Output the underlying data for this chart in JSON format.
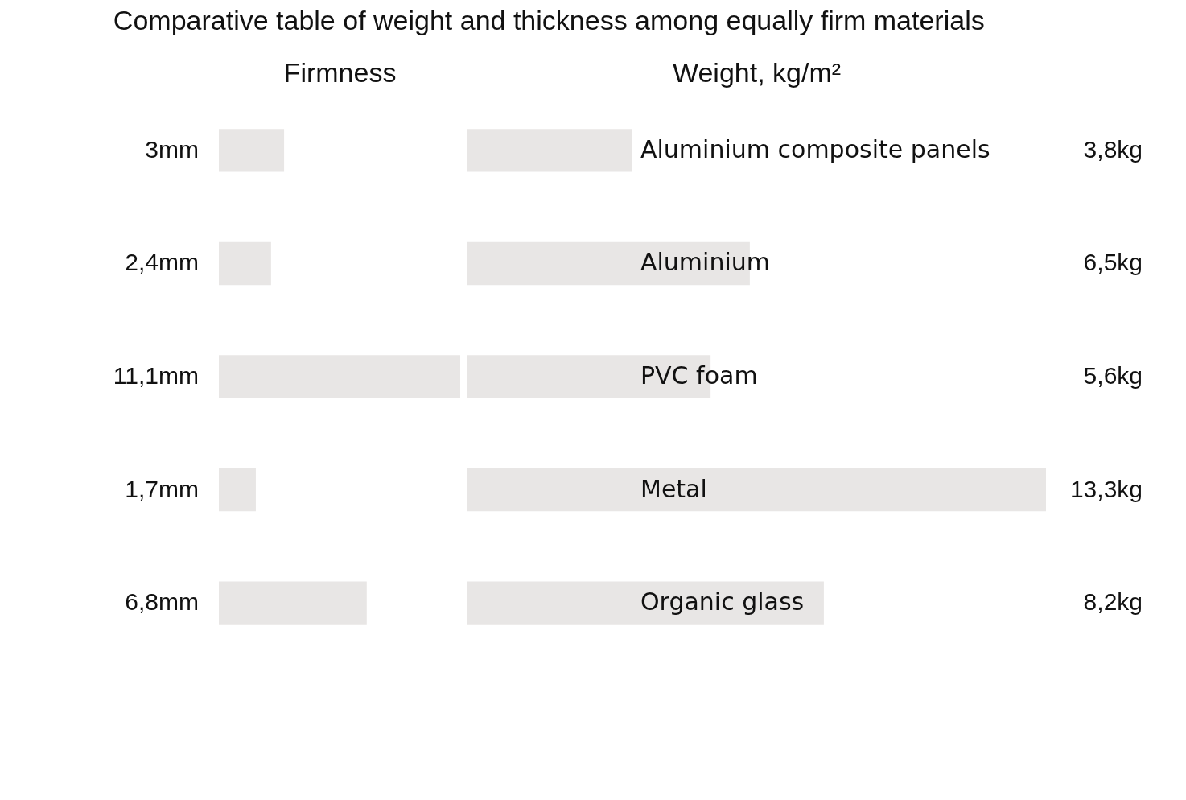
{
  "chart_data": [
    {
      "type": "bar",
      "orientation": "horizontal",
      "title": "Comparative table of weight and thickness among equally firm materials",
      "xlabel": "Firmness",
      "categories": [
        null,
        null,
        null,
        null,
        null
      ],
      "values": [
        3,
        2.4,
        11.1,
        1.7,
        6.8
      ],
      "value_labels": [
        "3mm",
        "2,4mm",
        "11,1mm",
        "1,7mm",
        "6,8mm"
      ],
      "color": "#e8e6e5",
      "tick_labels": false
    },
    {
      "type": "bar",
      "orientation": "horizontal",
      "xlabel": "Weight, kg/m²",
      "categories": [
        "Aluminium composite panels",
        "Aluminium",
        "PVC foam",
        "Metal",
        "Organic glass"
      ],
      "values": [
        3.8,
        6.5,
        5.6,
        13.3,
        8.2
      ],
      "value_labels": [
        "3,8kg",
        "6,5kg",
        "5,6kg",
        "13,3kg",
        "8,2kg"
      ],
      "color": "#e8e6e5",
      "tick_labels": false
    }
  ]
}
